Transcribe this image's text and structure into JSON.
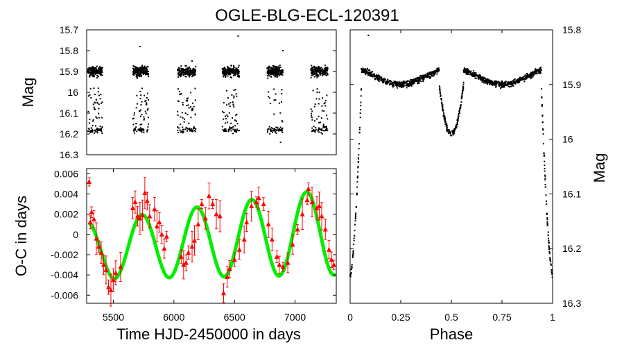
{
  "title": "OGLE-BLG-ECL-120391",
  "colors": {
    "points": "#000000",
    "oc_points": "#ff0000",
    "fit": "#00ee00"
  },
  "chart_data": [
    {
      "id": "lightcurve-time",
      "type": "scatter",
      "ylabel": "Mag",
      "yinvert": true,
      "xlim": [
        5280,
        7340
      ],
      "ylim": [
        15.7,
        16.3
      ],
      "yticks": [
        15.7,
        15.8,
        15.9,
        16,
        16.1,
        16.2,
        16.3
      ],
      "ytick_labels": [
        "15.7",
        "15.8",
        "15.9",
        "16",
        "16.1",
        "16.2",
        "16.3"
      ],
      "seasons": [
        [
          5290,
          5410
        ],
        [
          5660,
          5790
        ],
        [
          6030,
          6180
        ],
        [
          6400,
          6540
        ],
        [
          6770,
          6900
        ],
        [
          7130,
          7270
        ]
      ],
      "mag_base": 15.9,
      "mag_eclipse": 16.2,
      "outliers": [
        {
          "x": 5720,
          "y": 15.78
        },
        {
          "x": 6150,
          "y": 15.85
        },
        {
          "x": 6530,
          "y": 15.73
        },
        {
          "x": 6900,
          "y": 15.8
        },
        {
          "x": 6880,
          "y": 16.24
        }
      ]
    },
    {
      "id": "oc-diagram",
      "type": "scatter",
      "xlabel": "Time HJD-2450000 in days",
      "ylabel": "O-C in days",
      "xlim": [
        5280,
        7340
      ],
      "ylim": [
        -0.0068,
        0.0065
      ],
      "xticks": [
        5500,
        6000,
        6500,
        7000
      ],
      "xtick_labels": [
        "5500",
        "6000",
        "6500",
        "7000"
      ],
      "yticks": [
        0.006,
        0.004,
        0.002,
        0,
        -0.002,
        -0.004,
        -0.006
      ],
      "ytick_labels": [
        "0.006",
        "0.004",
        "0.002",
        "0",
        "-0.002",
        "-0.004",
        "-0.006"
      ],
      "series": [
        {
          "name": "O-C measurements",
          "marker": "triangle",
          "points": [
            [
              5300,
              0.0052
            ],
            [
              5310,
              0.0012
            ],
            [
              5320,
              0.0022
            ],
            [
              5340,
              0.0015
            ],
            [
              5360,
              -0.0004
            ],
            [
              5380,
              -0.0012
            ],
            [
              5400,
              -0.0018
            ],
            [
              5420,
              -0.003
            ],
            [
              5440,
              -0.0035
            ],
            [
              5460,
              -0.0052
            ],
            [
              5480,
              -0.0055
            ],
            [
              5500,
              -0.0045
            ],
            [
              5520,
              -0.0038
            ],
            [
              5560,
              -0.0032
            ],
            [
              5660,
              0.0026
            ],
            [
              5680,
              0.0032
            ],
            [
              5700,
              0.0018
            ],
            [
              5720,
              0.0016
            ],
            [
              5740,
              0.0019
            ],
            [
              5760,
              0.0041
            ],
            [
              5780,
              0.0033
            ],
            [
              5800,
              0.0018
            ],
            [
              5840,
              0.0025
            ],
            [
              5860,
              0.0008
            ],
            [
              5880,
              0.0012
            ],
            [
              5900,
              0.0
            ],
            [
              5920,
              -0.0014
            ],
            [
              5940,
              -0.0002
            ],
            [
              6060,
              -0.0022
            ],
            [
              6080,
              -0.003
            ],
            [
              6100,
              -0.0028
            ],
            [
              6120,
              -0.0018
            ],
            [
              6150,
              -0.0012
            ],
            [
              6170,
              -0.0006
            ],
            [
              6200,
              0.001
            ],
            [
              6230,
              0.003
            ],
            [
              6260,
              0.0016
            ],
            [
              6290,
              0.0038
            ],
            [
              6320,
              0.003
            ],
            [
              6350,
              0.002
            ],
            [
              6380,
              0.0018
            ],
            [
              6410,
              -0.0058
            ],
            [
              6440,
              -0.0042
            ],
            [
              6460,
              -0.0034
            ],
            [
              6500,
              -0.0025
            ],
            [
              6540,
              -0.0015
            ],
            [
              6580,
              -0.0005
            ],
            [
              6600,
              0.0012
            ],
            [
              6640,
              0.0028
            ],
            [
              6680,
              0.0032
            ],
            [
              6700,
              0.0036
            ],
            [
              6740,
              0.003
            ],
            [
              6780,
              0.001
            ],
            [
              6810,
              -0.0005
            ],
            [
              6850,
              -0.0022
            ],
            [
              6870,
              -0.003
            ],
            [
              6900,
              -0.0032
            ],
            [
              6940,
              -0.0028
            ],
            [
              6980,
              -0.001
            ],
            [
              7020,
              0.0005
            ],
            [
              7060,
              0.002
            ],
            [
              7100,
              0.0034
            ],
            [
              7110,
              0.0045
            ],
            [
              7140,
              0.0032
            ],
            [
              7180,
              0.0026
            ],
            [
              7200,
              0.0028
            ],
            [
              7220,
              0.0018
            ],
            [
              7250,
              0.0005
            ],
            [
              7280,
              -0.0015
            ],
            [
              7300,
              -0.0025
            ],
            [
              7320,
              -0.003
            ]
          ]
        },
        {
          "name": "LTTE fit",
          "type": "line",
          "model": "sinusoid",
          "period": 453,
          "phase_peak": 5735,
          "amplitude": [
            0.0028,
            0.0043
          ],
          "offset": [
            -0.0016,
            0.0003
          ]
        }
      ]
    },
    {
      "id": "lightcurve-phase",
      "type": "scatter",
      "xlabel": "Phase",
      "ylabel": "Mag",
      "yinvert": true,
      "xlim": [
        0,
        1
      ],
      "ylim": [
        15.8,
        16.3
      ],
      "xticks": [
        0,
        0.25,
        0.5,
        0.75,
        1
      ],
      "xtick_labels": [
        "0",
        "0.25",
        "0.5",
        "0.75",
        "1"
      ],
      "yticks": [
        15.8,
        15.9,
        16,
        16.1,
        16.2,
        16.3
      ],
      "ytick_labels": [
        "15.8",
        "15.9",
        "16",
        "16.1",
        "16.2",
        "16.3"
      ],
      "primary_depth": 16.25,
      "secondary_depth": 15.99,
      "max_mag": 15.87
    }
  ]
}
